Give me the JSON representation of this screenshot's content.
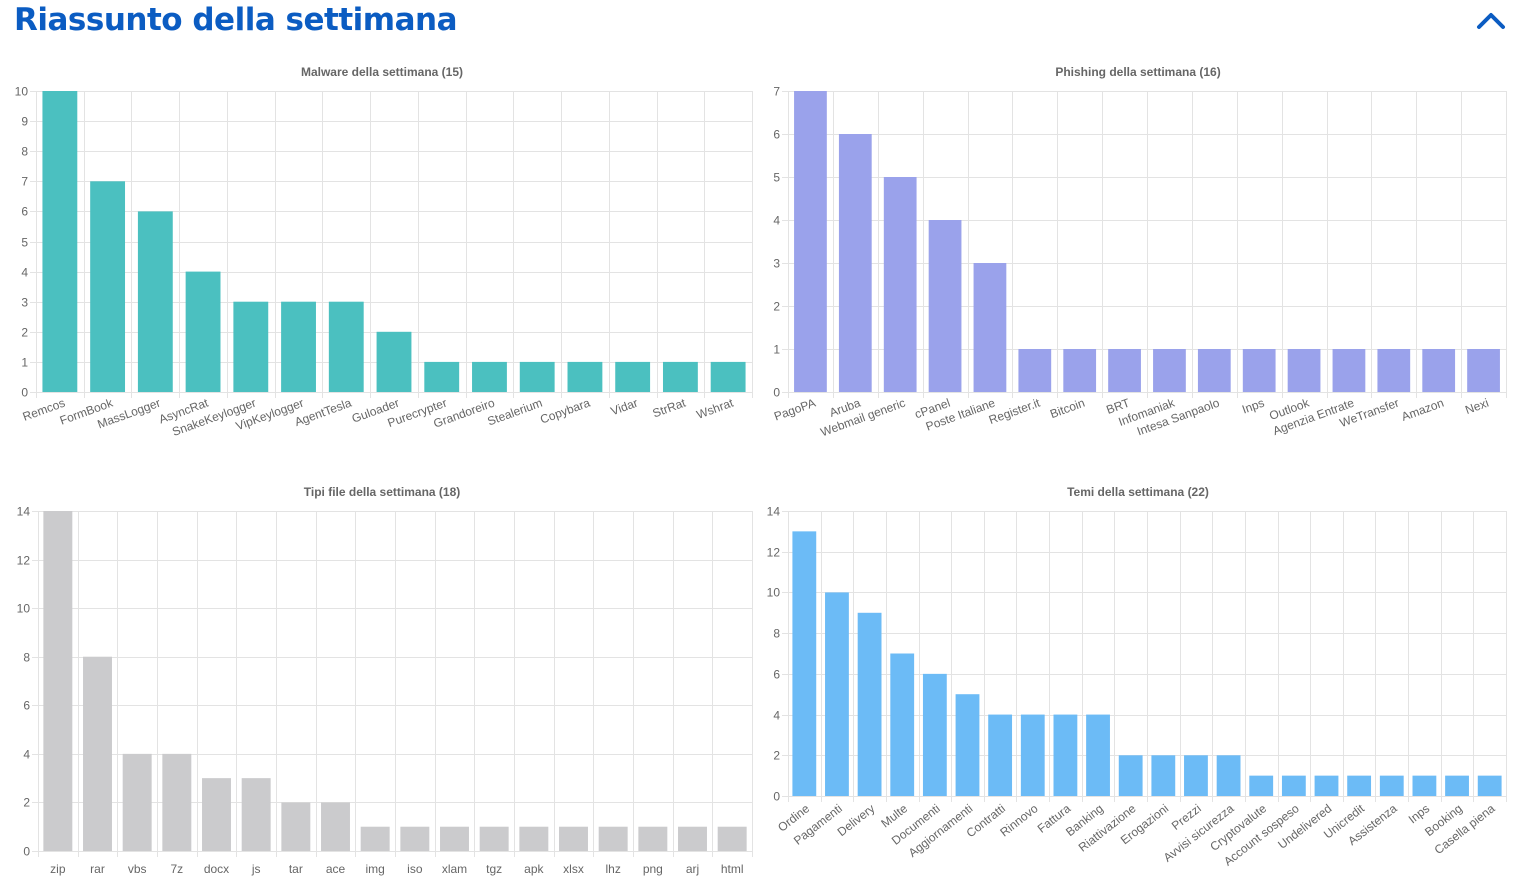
{
  "header": {
    "title": "Riassunto della settimana",
    "collapse_icon": "chevron-up-icon"
  },
  "chart_data": [
    {
      "type": "bar",
      "title": "Malware della settimana (15)",
      "categories": [
        "Remcos",
        "FormBook",
        "MassLogger",
        "AsyncRat",
        "SnakeKeylogger",
        "VipKeylogger",
        "AgentTesla",
        "Guloader",
        "Purecrypter",
        "Grandoreiro",
        "Stealerium",
        "Copybara",
        "Vidar",
        "StrRat",
        "Wshrat"
      ],
      "values": [
        10,
        7,
        6,
        4,
        3,
        3,
        3,
        2,
        1,
        1,
        1,
        1,
        1,
        1,
        1
      ],
      "ylim": [
        0,
        10
      ],
      "yticks": [
        0,
        1,
        2,
        3,
        4,
        5,
        6,
        7,
        8,
        9,
        10
      ],
      "color": "#4bc0c0",
      "label_rotation": -20,
      "grid": true
    },
    {
      "type": "bar",
      "title": "Phishing della settimana (16)",
      "categories": [
        "PagoPA",
        "Aruba",
        "Webmail generic",
        "cPanel",
        "Poste Italiane",
        "Register.it",
        "Bitcoin",
        "BRT",
        "Infomaniak",
        "Intesa Sanpaolo",
        "Inps",
        "Outlook",
        "Agenzia Entrate",
        "WeTransfer",
        "Amazon",
        "Nexi"
      ],
      "values": [
        7,
        6,
        5,
        4,
        3,
        1,
        1,
        1,
        1,
        1,
        1,
        1,
        1,
        1,
        1,
        1
      ],
      "ylim": [
        0,
        7
      ],
      "yticks": [
        0,
        1,
        2,
        3,
        4,
        5,
        6,
        7
      ],
      "color": "#9aa2eb",
      "label_rotation": -20,
      "grid": true
    },
    {
      "type": "bar",
      "title": "Tipi file della settimana (18)",
      "categories": [
        "zip",
        "rar",
        "vbs",
        "7z",
        "docx",
        "js",
        "tar",
        "ace",
        "img",
        "iso",
        "xlam",
        "tgz",
        "apk",
        "xlsx",
        "lhz",
        "png",
        "arj",
        "html"
      ],
      "values": [
        14,
        8,
        4,
        4,
        3,
        3,
        2,
        2,
        1,
        1,
        1,
        1,
        1,
        1,
        1,
        1,
        1,
        1
      ],
      "ylim": [
        0,
        14
      ],
      "yticks": [
        0,
        2,
        4,
        6,
        8,
        10,
        12,
        14
      ],
      "color": "#cbcbcd",
      "label_rotation": 0,
      "grid": true
    },
    {
      "type": "bar",
      "title": "Temi della settimana (22)",
      "categories": [
        "Ordine",
        "Pagamenti",
        "Delivery",
        "Multe",
        "Documenti",
        "Aggiornamenti",
        "Contratti",
        "Rinnovo",
        "Fattura",
        "Banking",
        "Riattivazione",
        "Erogazioni",
        "Prezzi",
        "Avvisi sicurezza",
        "Cryptovalute",
        "Account sospeso",
        "Undelivered",
        "Unicredit",
        "Assistenza",
        "Inps",
        "Booking",
        "Casella piena"
      ],
      "values": [
        13,
        10,
        9,
        7,
        6,
        5,
        4,
        4,
        4,
        4,
        2,
        2,
        2,
        2,
        1,
        1,
        1,
        1,
        1,
        1,
        1,
        1
      ],
      "ylim": [
        0,
        14
      ],
      "yticks": [
        0,
        2,
        4,
        6,
        8,
        10,
        12,
        14
      ],
      "color": "#6cbbf6",
      "label_rotation": -38,
      "grid": true
    }
  ]
}
